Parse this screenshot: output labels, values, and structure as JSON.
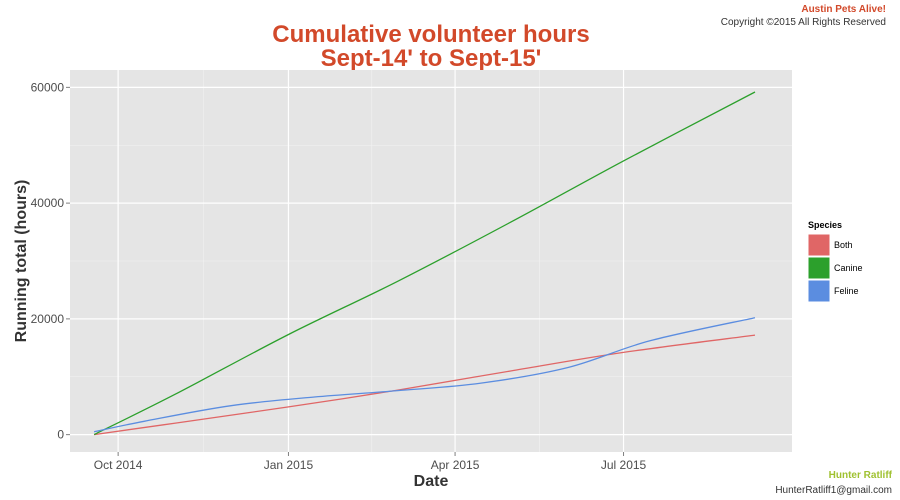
{
  "colors": {
    "title": "#d2492a",
    "org": "#d2492a",
    "author": "#9fc130",
    "panel_background": "#e5e5e5",
    "grid": "#ffffff"
  },
  "corner_text": {
    "org_name": "Austin Pets Alive!",
    "copyright": "Copyright ©2015 All Rights Reserved",
    "author_name": "Hunter Ratliff",
    "author_email": "HunterRatliff1@gmail.com"
  },
  "chart_data": {
    "type": "line",
    "title": [
      "Cumulative volunteer hours",
      "Sept-14' to Sept-15'"
    ],
    "xlabel": "Date",
    "ylabel": "Running total (hours)",
    "xlim": [
      "2014-09-05",
      "2015-09-30"
    ],
    "ylim": [
      -3000,
      63000
    ],
    "x_ticks": [
      {
        "date": "2014-10-01",
        "label": "Oct 2014"
      },
      {
        "date": "2015-01-01",
        "label": "Jan 2015"
      },
      {
        "date": "2015-04-01",
        "label": "Apr 2015"
      },
      {
        "date": "2015-07-01",
        "label": "Jul 2015"
      }
    ],
    "y_ticks": [
      0,
      20000,
      40000,
      60000
    ],
    "grid": true,
    "legend": {
      "title": "Species",
      "position": "right"
    },
    "series": [
      {
        "name": "Both",
        "color": "#e06666",
        "x": [
          "2014-09-18",
          "2014-11-01",
          "2015-01-01",
          "2015-03-01",
          "2015-05-01",
          "2015-07-01",
          "2015-09-10"
        ],
        "y": [
          0,
          2000,
          4800,
          7700,
          11000,
          14200,
          17200
        ]
      },
      {
        "name": "Canine",
        "color": "#2ca02c",
        "x": [
          "2014-09-18",
          "2014-11-01",
          "2015-01-01",
          "2015-03-01",
          "2015-05-01",
          "2015-07-01",
          "2015-09-10"
        ],
        "y": [
          0,
          7000,
          17300,
          26500,
          36700,
          47300,
          59200
        ]
      },
      {
        "name": "Feline",
        "color": "#5b8de0",
        "x": [
          "2014-09-18",
          "2014-10-15",
          "2014-12-01",
          "2015-01-15",
          "2015-03-01",
          "2015-04-15",
          "2015-06-01",
          "2015-07-15",
          "2015-09-10"
        ],
        "y": [
          500,
          2300,
          5000,
          6500,
          7600,
          8900,
          11600,
          16200,
          20200
        ]
      }
    ]
  }
}
